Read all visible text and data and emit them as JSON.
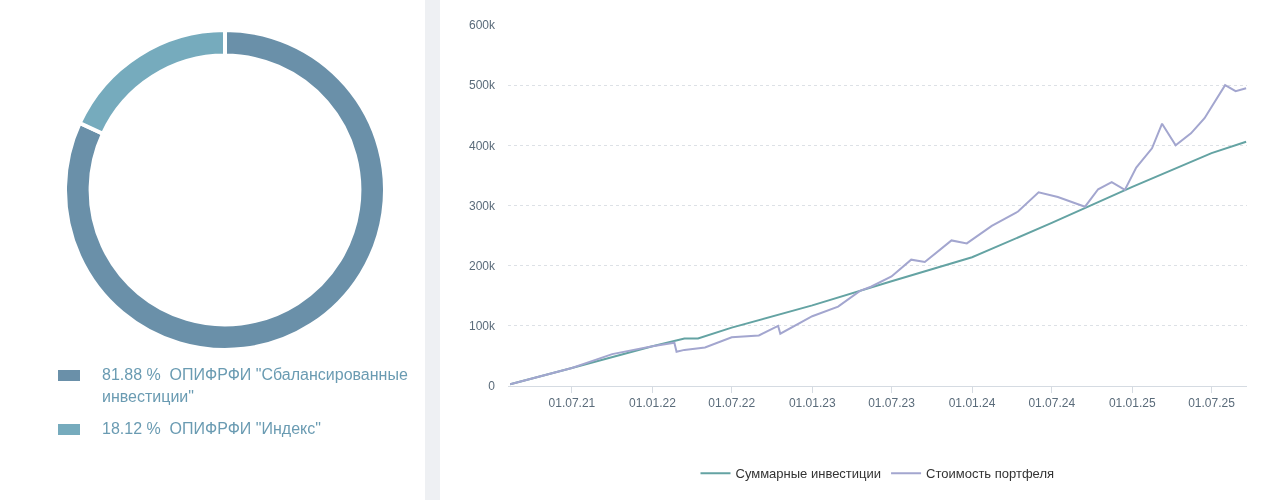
{
  "chart_data": [
    {
      "type": "donut",
      "categories": [
        "ОПИФРФИ \"Сбалансированные инвестиции\"",
        "ОПИФРФИ \"Индекс\""
      ],
      "values": [
        81.88,
        18.12
      ],
      "colors": [
        "#6a90a9",
        "#76abbd"
      ],
      "value_labels": [
        "81.88 %",
        "18.12 %"
      ],
      "legend": "bottom"
    },
    {
      "type": "line",
      "xlim": [
        "2021-02-05",
        "2025-09-20"
      ],
      "xticks": [
        {
          "value": "2021-07-01",
          "label": "01.07.21"
        },
        {
          "value": "2022-01-01",
          "label": "01.01.22"
        },
        {
          "value": "2022-07-01",
          "label": "01.07.22"
        },
        {
          "value": "2023-01-01",
          "label": "01.01.23"
        },
        {
          "value": "2023-07-01",
          "label": "01.07.23"
        },
        {
          "value": "2024-01-01",
          "label": "01.01.24"
        },
        {
          "value": "2024-07-01",
          "label": "01.07.24"
        },
        {
          "value": "2025-01-01",
          "label": "01.01.25"
        },
        {
          "value": "2025-07-01",
          "label": "01.07.25"
        }
      ],
      "ylim": [
        0,
        600000
      ],
      "yticks": [
        0,
        {
          "value": 100000,
          "label": "100k"
        },
        {
          "value": 200000,
          "label": "200k"
        },
        {
          "value": 300000,
          "label": "300k"
        },
        {
          "value": 400000,
          "label": "400k"
        },
        {
          "value": 500000,
          "label": "500k"
        },
        {
          "value": 600000,
          "label": "600k"
        }
      ],
      "grid": "y",
      "legend": "bottom",
      "series": [
        {
          "name": "Суммарные инвестиции",
          "color": "#64a3a3",
          "x": [
            "2021-02-10",
            "2021-07-01",
            "2022-01-01",
            "2022-03-15",
            "2022-04-15",
            "2022-07-01",
            "2023-01-01",
            "2023-07-01",
            "2023-10-01",
            "2024-01-01",
            "2024-07-01",
            "2025-01-01",
            "2025-07-01",
            "2025-09-18"
          ],
          "values": [
            3000,
            30000,
            66000,
            79000,
            79000,
            97000,
            134000,
            174000,
            194000,
            214000,
            271000,
            331000,
            387000,
            406000
          ]
        },
        {
          "name": "Стоимость портфеля",
          "color": "#a3a6cf",
          "x": [
            "2021-02-10",
            "2021-07-01",
            "2021-10-01",
            "2022-01-01",
            "2022-02-20",
            "2022-02-25",
            "2022-03-15",
            "2022-05-01",
            "2022-07-01",
            "2022-09-01",
            "2022-10-15",
            "2022-10-20",
            "2023-01-01",
            "2023-03-01",
            "2023-04-20",
            "2023-05-15",
            "2023-07-01",
            "2023-08-15",
            "2023-09-15",
            "2023-11-15",
            "2023-12-20",
            "2024-02-15",
            "2024-04-15",
            "2024-06-01",
            "2024-07-15",
            "2024-09-15",
            "2024-10-15",
            "2024-11-15",
            "2024-12-15",
            "2025-01-10",
            "2025-02-15",
            "2025-03-10",
            "2025-04-10",
            "2025-05-15",
            "2025-06-15",
            "2025-08-01",
            "2025-08-25",
            "2025-09-18"
          ],
          "values": [
            3000,
            30000,
            53000,
            66000,
            72000,
            57000,
            60000,
            64000,
            81000,
            84000,
            100000,
            87000,
            116000,
            132000,
            158000,
            165000,
            182000,
            210000,
            206000,
            242000,
            237000,
            266000,
            290000,
            322000,
            314000,
            298000,
            327000,
            339000,
            326000,
            363000,
            395000,
            436000,
            400000,
            420000,
            445000,
            500000,
            490000,
            495000
          ]
        }
      ]
    }
  ]
}
